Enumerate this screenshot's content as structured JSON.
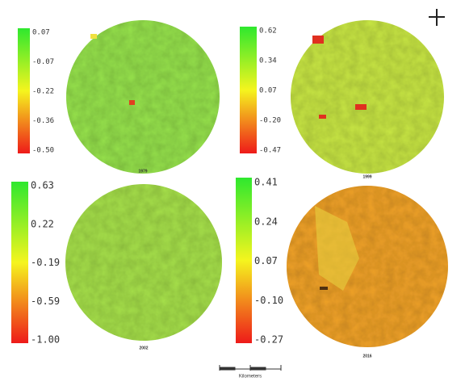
{
  "panels": [
    {
      "year": "1979",
      "ticks": [
        "0.07",
        "-0.07",
        "-0.22",
        "-0.36",
        "-0.50"
      ]
    },
    {
      "year": "1999",
      "ticks": [
        "0.62",
        "0.34",
        "0.07",
        "-0.20",
        "-0.47"
      ]
    },
    {
      "year": "2002",
      "ticks": [
        "0.63",
        "0.22",
        "-0.19",
        "-0.59",
        "-1.00"
      ]
    },
    {
      "year": "2016",
      "ticks": [
        "0.41",
        "0.24",
        "0.07",
        "-0.10",
        "-0.27"
      ]
    }
  ],
  "scale_bar": {
    "label": "Kilometers"
  }
}
